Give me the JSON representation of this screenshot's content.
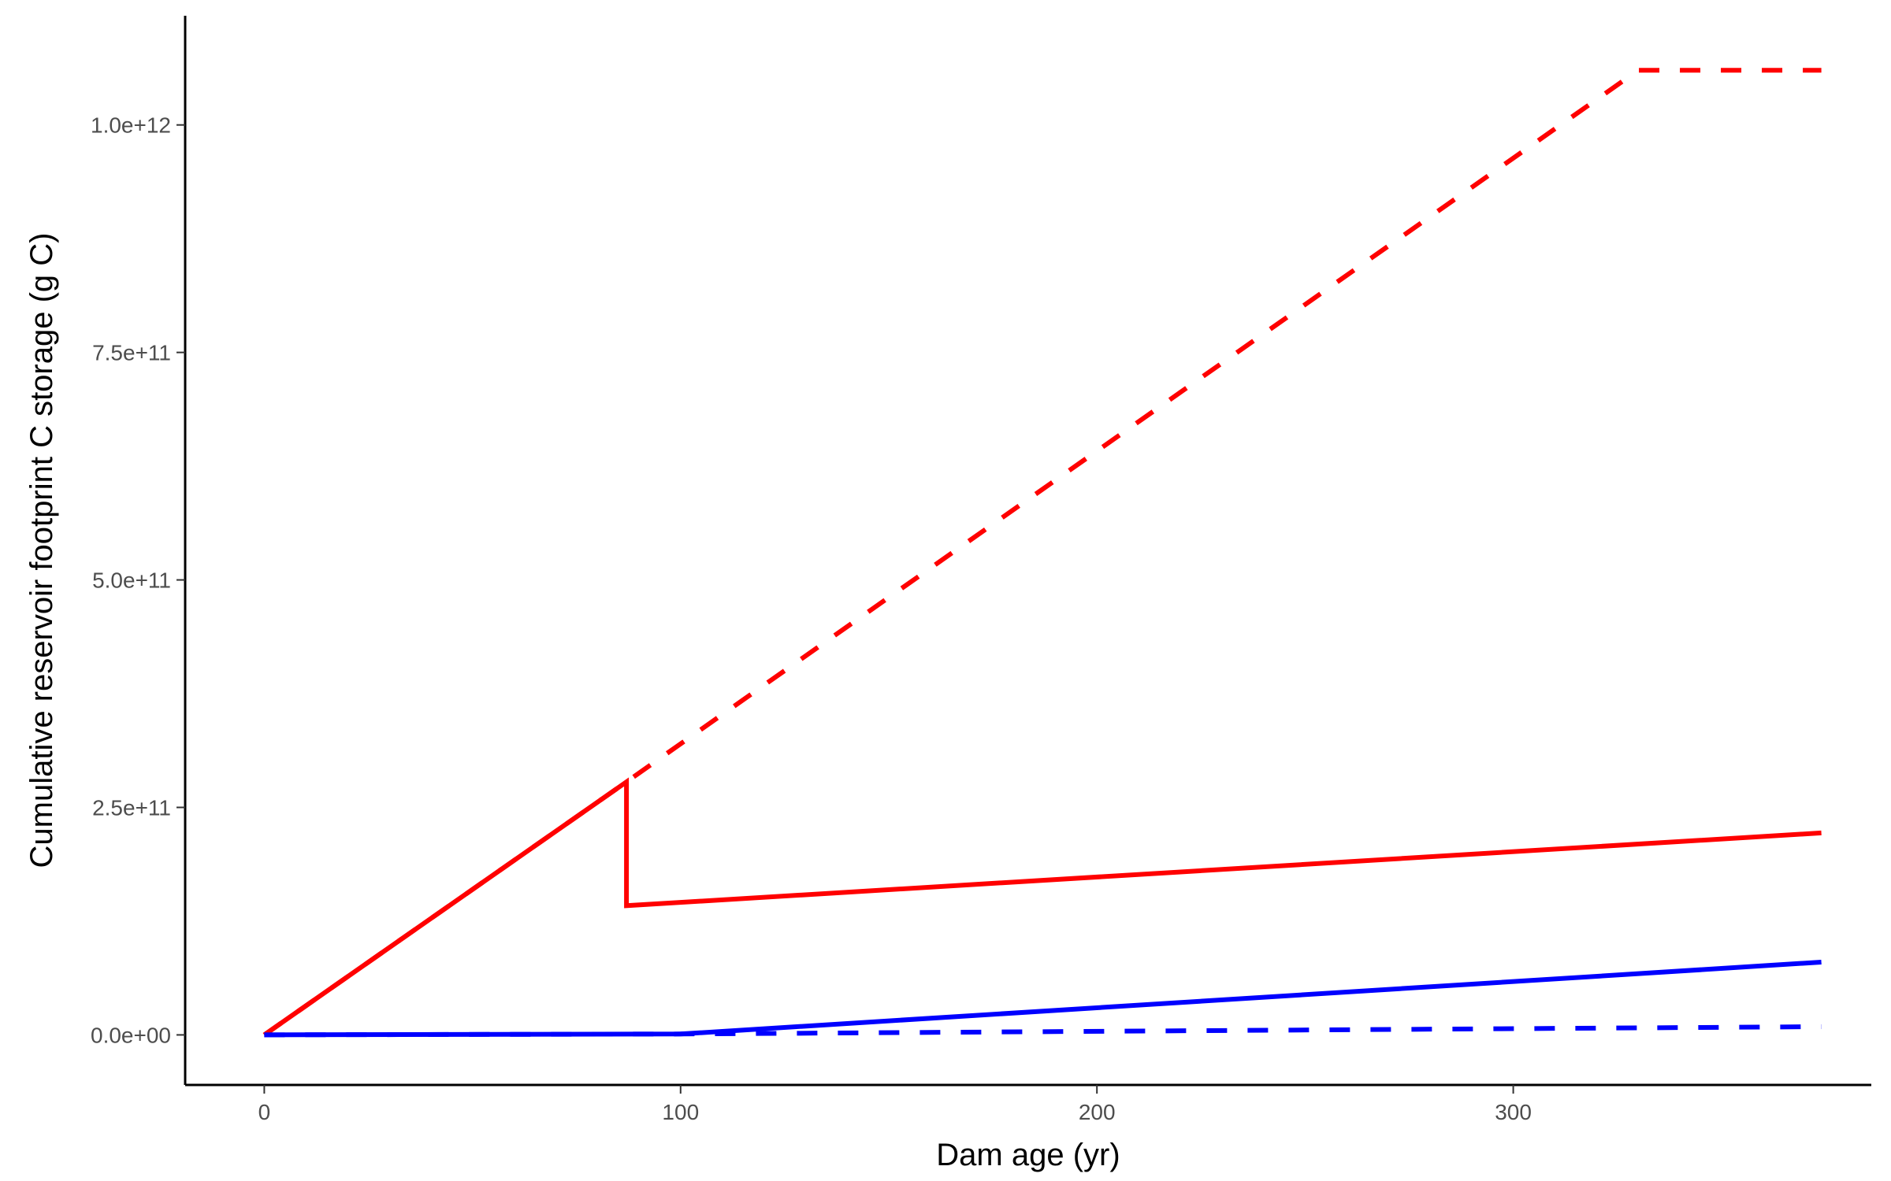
{
  "chart_data": {
    "type": "line",
    "title": "",
    "xlabel": "Dam age (yr)",
    "ylabel": "Cumulative reservoir footprint C storage (g C)",
    "xlim": [
      -19,
      386
    ],
    "ylim": [
      -55000000000.0,
      1120000000000.0
    ],
    "x_ticks": [
      0,
      100,
      200,
      300
    ],
    "x_tick_labels": [
      "0",
      "100",
      "200",
      "300"
    ],
    "y_ticks": [
      0,
      250000000000,
      500000000000,
      750000000000,
      1000000000000
    ],
    "y_tick_labels": [
      "0.0e+00",
      "2.5e+11",
      "5.0e+11",
      "7.5e+11",
      "1.0e+12"
    ],
    "grid": false,
    "legend": "none",
    "series": [
      {
        "color": "#ff0000",
        "dash": "dashed",
        "points": [
          [
            0,
            0
          ],
          [
            87,
            278000000000
          ],
          [
            330,
            1060000000000
          ],
          [
            374,
            1060000000000
          ]
        ]
      },
      {
        "color": "#ff0000",
        "dash": "solid",
        "points": [
          [
            0,
            0
          ],
          [
            87,
            278000000000
          ],
          [
            87,
            142000000000
          ],
          [
            374,
            222000000000
          ]
        ]
      },
      {
        "color": "#0000ff",
        "dash": "dashed",
        "points": [
          [
            0,
            0
          ],
          [
            100,
            1000000000
          ],
          [
            374,
            9000000000
          ]
        ]
      },
      {
        "color": "#0000ff",
        "dash": "solid",
        "points": [
          [
            0,
            0
          ],
          [
            100,
            1000000000
          ],
          [
            374,
            80000000000
          ]
        ]
      }
    ]
  }
}
